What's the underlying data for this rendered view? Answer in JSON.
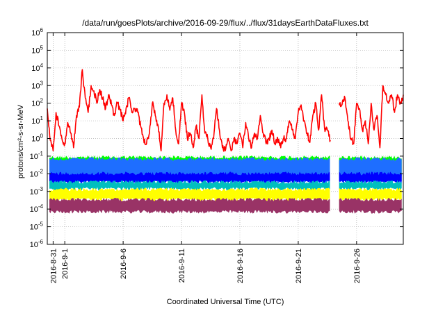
{
  "chart_data": {
    "type": "line",
    "title": "/data/run/goesPlots/archive/2016-09-29/flux/../flux/31daysEarthDataFluxes.txt",
    "xlabel": "Coordinated Universal Time (UTC)",
    "ylabel": "protons/cm²-s-sr-MeV",
    "y_scale": "log",
    "ylim": [
      1e-06,
      1000000.0
    ],
    "xlim": [
      "2016-08-30T12:00",
      "2016-09-30T00:00"
    ],
    "x_ticks": [
      "2016-8-31",
      "2016-9-1",
      "2016-9-6",
      "2016-9-11",
      "2016-9-16",
      "2016-9-21",
      "2016-9-26"
    ],
    "x_tick_dates": [
      "2016-08-31",
      "2016-09-01",
      "2016-09-06",
      "2016-09-11",
      "2016-09-16",
      "2016-09-21",
      "2016-09-26"
    ],
    "y_ticks": [
      {
        "base": "10",
        "exp": "-6",
        "value": 1e-06
      },
      {
        "base": "10",
        "exp": "-5",
        "value": 1e-05
      },
      {
        "base": "10",
        "exp": "-4",
        "value": 0.0001
      },
      {
        "base": "10",
        "exp": "-3",
        "value": 0.001
      },
      {
        "base": "10",
        "exp": "-2",
        "value": 0.01
      },
      {
        "base": "10",
        "exp": "-1",
        "value": 0.1
      },
      {
        "base": "10",
        "exp": "0",
        "value": 1
      },
      {
        "base": "10",
        "exp": "1",
        "value": 10
      },
      {
        "base": "10",
        "exp": "2",
        "value": 100
      },
      {
        "base": "10",
        "exp": "3",
        "value": 1000
      },
      {
        "base": "10",
        "exp": "4",
        "value": 10000
      },
      {
        "base": "10",
        "exp": "5",
        "value": 100000
      },
      {
        "base": "10",
        "exp": "6",
        "value": 1000000
      }
    ],
    "grid": true,
    "data_gap": [
      "2016-09-23T18:00",
      "2016-09-24T12:00"
    ],
    "series": [
      {
        "color": "#ff0000",
        "style": "line",
        "x": [
          "2016-08-30T12:00",
          "2016-08-30T18:00",
          "2016-08-31T00:00",
          "2016-08-31T06:00",
          "2016-08-31T12:00",
          "2016-08-31T18:00",
          "2016-09-01T00:00",
          "2016-09-01T06:00",
          "2016-09-01T12:00",
          "2016-09-01T18:00",
          "2016-09-02T00:00",
          "2016-09-02T06:00",
          "2016-09-02T12:00",
          "2016-09-02T18:00",
          "2016-09-03T00:00",
          "2016-09-03T06:00",
          "2016-09-03T12:00",
          "2016-09-03T18:00",
          "2016-09-04T00:00",
          "2016-09-04T06:00",
          "2016-09-04T12:00",
          "2016-09-04T18:00",
          "2016-09-05T00:00",
          "2016-09-05T06:00",
          "2016-09-05T12:00",
          "2016-09-05T18:00",
          "2016-09-06T00:00",
          "2016-09-06T06:00",
          "2016-09-06T12:00",
          "2016-09-06T18:00",
          "2016-09-07T00:00",
          "2016-09-07T06:00",
          "2016-09-07T12:00",
          "2016-09-07T18:00",
          "2016-09-08T00:00",
          "2016-09-08T06:00",
          "2016-09-08T12:00",
          "2016-09-08T18:00",
          "2016-09-09T00:00",
          "2016-09-09T06:00",
          "2016-09-09T12:00",
          "2016-09-09T18:00",
          "2016-09-10T00:00",
          "2016-09-10T06:00",
          "2016-09-10T12:00",
          "2016-09-10T18:00",
          "2016-09-11T00:00",
          "2016-09-11T06:00",
          "2016-09-11T12:00",
          "2016-09-11T18:00",
          "2016-09-12T00:00",
          "2016-09-12T06:00",
          "2016-09-12T12:00",
          "2016-09-12T18:00",
          "2016-09-13T00:00",
          "2016-09-13T06:00",
          "2016-09-13T12:00",
          "2016-09-13T18:00",
          "2016-09-14T00:00",
          "2016-09-14T06:00",
          "2016-09-14T12:00",
          "2016-09-14T18:00",
          "2016-09-15T00:00",
          "2016-09-15T06:00",
          "2016-09-15T12:00",
          "2016-09-15T18:00",
          "2016-09-16T00:00",
          "2016-09-16T06:00",
          "2016-09-16T12:00",
          "2016-09-16T18:00",
          "2016-09-17T00:00",
          "2016-09-17T06:00",
          "2016-09-17T12:00",
          "2016-09-17T18:00",
          "2016-09-18T00:00",
          "2016-09-18T06:00",
          "2016-09-18T12:00",
          "2016-09-18T18:00",
          "2016-09-19T00:00",
          "2016-09-19T06:00",
          "2016-09-19T12:00",
          "2016-09-19T18:00",
          "2016-09-20T00:00",
          "2016-09-20T06:00",
          "2016-09-20T12:00",
          "2016-09-20T18:00",
          "2016-09-21T00:00",
          "2016-09-21T06:00",
          "2016-09-21T12:00",
          "2016-09-21T18:00",
          "2016-09-22T00:00",
          "2016-09-22T06:00",
          "2016-09-22T12:00",
          "2016-09-22T18:00",
          "2016-09-23T00:00",
          "2016-09-23T06:00",
          "2016-09-23T12:00",
          "2016-09-23T18:00",
          null,
          "2016-09-24T12:00",
          "2016-09-24T18:00",
          "2016-09-25T00:00",
          "2016-09-25T06:00",
          "2016-09-25T12:00",
          "2016-09-25T18:00",
          "2016-09-26T00:00",
          "2016-09-26T06:00",
          "2016-09-26T12:00",
          "2016-09-26T18:00",
          "2016-09-27T00:00",
          "2016-09-27T06:00",
          "2016-09-27T12:00",
          "2016-09-27T18:00",
          "2016-09-28T00:00",
          "2016-09-28T06:00",
          "2016-09-28T12:00",
          "2016-09-28T18:00",
          "2016-09-29T00:00",
          "2016-09-29T06:00",
          "2016-09-29T12:00",
          "2016-09-29T18:00",
          "2016-09-30T00:00"
        ],
        "y": [
          50,
          0.8,
          0.2,
          30,
          5,
          1,
          0.5,
          8,
          2,
          0.3,
          20,
          60,
          8000,
          200,
          30,
          1000,
          500,
          100,
          600,
          200,
          50,
          300,
          80,
          20,
          100,
          40,
          10,
          50,
          200,
          30,
          50,
          30,
          5,
          1,
          0.5,
          2,
          100,
          20,
          5,
          0.2,
          100,
          300,
          40,
          200,
          3,
          0.5,
          100,
          30,
          1,
          2,
          0.3,
          5,
          1,
          300,
          2,
          1,
          0.3,
          1,
          50,
          3,
          0.3,
          0.2,
          1,
          0.2,
          1,
          0.5,
          2,
          0.3,
          8,
          1,
          0.3,
          2,
          1,
          20,
          2,
          0.5,
          1,
          3,
          0.5,
          1,
          0.3,
          1,
          1,
          10,
          3,
          1,
          30,
          80,
          10,
          2,
          0.6,
          20,
          100,
          3,
          300,
          4,
          3,
          0.8,
          null,
          100,
          80,
          200,
          10,
          1,
          0.5,
          100,
          50,
          3,
          10,
          0.5,
          100,
          3,
          20,
          0.3,
          1000,
          300,
          100,
          300,
          30,
          300,
          100,
          300
        ]
      },
      {
        "color": "#00ff00",
        "style": "band",
        "y_band": [
          0.006,
          0.1
        ]
      },
      {
        "color": "#1e6eff",
        "style": "band",
        "y_band": [
          0.003,
          0.08
        ]
      },
      {
        "color": "#0000ff",
        "style": "band",
        "y_band": [
          0.003,
          0.012
        ]
      },
      {
        "color": "#00bfbf",
        "style": "band",
        "y_band": [
          0.0012,
          0.004
        ]
      },
      {
        "color": "#ffff00",
        "style": "band",
        "y_band": [
          0.0003,
          0.0015
        ]
      },
      {
        "color": "#993366",
        "style": "band",
        "y_band": [
          6e-05,
          0.0004
        ]
      }
    ]
  }
}
